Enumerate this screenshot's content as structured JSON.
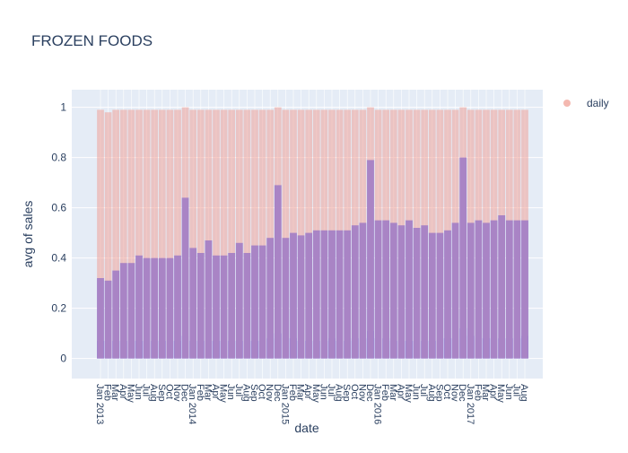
{
  "chart_data": {
    "type": "bar",
    "title": "FROZEN FOODS",
    "x_label": "date",
    "y_label": "avg of sales",
    "categories": [
      "Jan 2013",
      "Feb",
      "Mar",
      "Apr",
      "May",
      "Jun",
      "Jul",
      "Aug",
      "Sep",
      "Oct",
      "Nov",
      "Dec",
      "Jan 2014",
      "Feb",
      "Mar",
      "Apr",
      "May",
      "Jun",
      "Jul",
      "Aug",
      "Sep",
      "Oct",
      "Nov",
      "Dec",
      "Jan 2015",
      "Feb",
      "Mar",
      "Apr",
      "May",
      "Jun",
      "Jul",
      "Aug",
      "Sep",
      "Oct",
      "Nov",
      "Dec",
      "Jan 2016",
      "Feb",
      "Mar",
      "Apr",
      "May",
      "Jun",
      "Jul",
      "Aug",
      "Sep",
      "Oct",
      "Nov",
      "Dec",
      "Jan 2017",
      "Feb",
      "Mar",
      "Apr",
      "May",
      "Jun",
      "Jul",
      "Aug"
    ],
    "series": [
      {
        "color": "#636efa",
        "values": [
          0.32,
          0.31,
          0.35,
          0.38,
          0.38,
          0.41,
          0.4,
          0.4,
          0.4,
          0.4,
          0.41,
          0.64,
          0.44,
          0.42,
          0.47,
          0.41,
          0.41,
          0.42,
          0.46,
          0.42,
          0.45,
          0.45,
          0.48,
          0.69,
          0.48,
          0.5,
          0.49,
          0.5,
          0.51,
          0.51,
          0.51,
          0.51,
          0.51,
          0.53,
          0.54,
          0.79,
          0.55,
          0.55,
          0.54,
          0.53,
          0.55,
          0.52,
          0.53,
          0.5,
          0.5,
          0.51,
          0.54,
          0.8,
          0.54,
          0.55,
          0.54,
          0.55,
          0.57,
          0.55,
          0.55,
          0.55
        ]
      },
      {
        "color": "#636efa",
        "values": [
          0.07,
          0.07,
          0.07,
          0.07,
          0.07,
          0.07,
          0.07,
          0.07,
          0.07,
          0.07,
          0.07,
          0.09,
          0.07,
          0.07,
          0.07,
          0.07,
          0.07,
          0.07,
          0.07,
          0.07,
          0.07,
          0.07,
          0.08,
          0.1,
          0.08,
          0.08,
          0.07,
          0.07,
          0.07,
          0.07,
          0.08,
          0.07,
          0.07,
          0.08,
          0.08,
          0.11,
          0.08,
          0.08,
          0.07,
          0.07,
          0.07,
          0.07,
          0.07,
          0.07,
          0.08,
          0.08,
          0.08,
          0.12,
          0.09,
          0.08,
          0.08,
          0.08,
          0.08,
          0.08,
          0.08,
          0.09
        ]
      },
      {
        "name": "daily",
        "color": "#ef9a8f",
        "values": [
          0.99,
          0.98,
          0.99,
          0.99,
          0.99,
          0.99,
          0.99,
          0.99,
          0.99,
          0.99,
          0.99,
          1.0,
          0.99,
          0.99,
          0.99,
          0.99,
          0.99,
          0.99,
          0.99,
          0.99,
          0.99,
          0.99,
          0.99,
          1.0,
          0.99,
          0.99,
          0.99,
          0.99,
          0.99,
          0.99,
          0.99,
          0.99,
          0.99,
          0.99,
          0.99,
          1.0,
          0.99,
          0.99,
          0.99,
          0.99,
          0.99,
          0.99,
          0.99,
          0.99,
          0.99,
          0.99,
          0.99,
          1.0,
          0.99,
          0.99,
          0.99,
          0.99,
          0.99,
          0.99,
          0.99,
          0.99
        ]
      }
    ],
    "ylim": [
      -0.08,
      1.07
    ],
    "yticks": [
      0,
      0.2,
      0.4,
      0.6,
      0.8,
      1
    ],
    "grid": true
  }
}
